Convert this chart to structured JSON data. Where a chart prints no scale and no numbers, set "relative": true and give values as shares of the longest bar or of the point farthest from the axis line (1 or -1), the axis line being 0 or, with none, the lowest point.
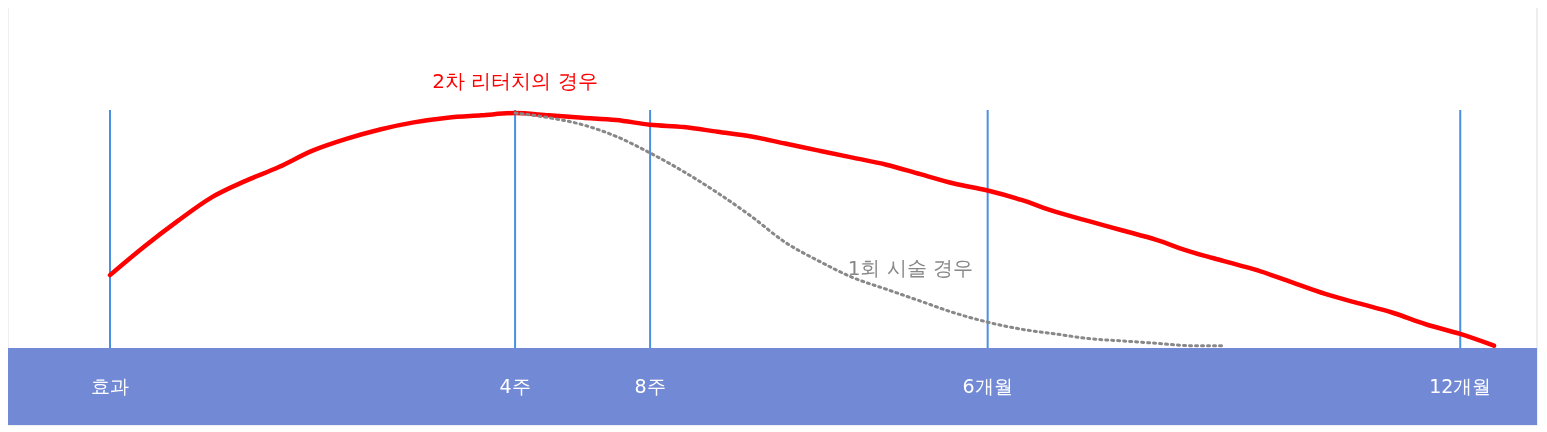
{
  "chart_data": {
    "type": "line",
    "relative": true,
    "grid": "x",
    "marker": "none",
    "categories": [
      "효과",
      null,
      null,
      null,
      null,
      null,
      null,
      null,
      null,
      null,
      null,
      null,
      "4주",
      null,
      null,
      null,
      "8주",
      null,
      null,
      null,
      null,
      null,
      null,
      null,
      null,
      null,
      "6개월",
      null,
      null,
      null,
      null,
      null,
      null,
      null,
      null,
      null,
      null,
      null,
      null,
      null,
      "12개월",
      null
    ],
    "series": [
      {
        "name": "2차 리터치의 경우",
        "color": "#ff0000",
        "line_style": "solid",
        "values": [
          0.31,
          0.43,
          0.54,
          0.64,
          0.71,
          0.77,
          0.84,
          0.89,
          0.93,
          0.96,
          0.98,
          0.99,
          1.0,
          0.99,
          0.98,
          0.97,
          0.95,
          0.94,
          0.92,
          0.9,
          0.87,
          0.84,
          0.81,
          0.78,
          0.74,
          0.7,
          0.67,
          0.63,
          0.58,
          0.54,
          0.5,
          0.46,
          0.41,
          0.37,
          0.33,
          0.28,
          0.23,
          0.19,
          0.15,
          0.1,
          0.06,
          0.01
        ]
      },
      {
        "name": "1회 시술 경우",
        "color": "#888888",
        "line_style": "dotted",
        "values": [
          null,
          null,
          null,
          null,
          null,
          null,
          null,
          null,
          null,
          null,
          null,
          null,
          1.0,
          0.98,
          0.95,
          0.9,
          0.83,
          0.75,
          0.66,
          0.56,
          0.45,
          0.37,
          0.3,
          0.25,
          0.2,
          0.15,
          0.11,
          0.08,
          0.06,
          0.04,
          0.03,
          0.02,
          0.01,
          0.01,
          null,
          null,
          null,
          null,
          null,
          null,
          null,
          null
        ]
      }
    ]
  }
}
